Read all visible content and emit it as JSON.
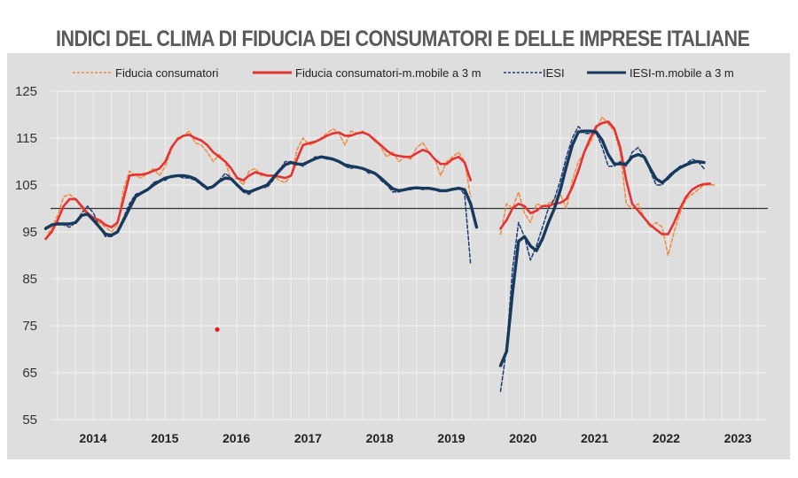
{
  "chart_data": {
    "type": "line",
    "title": "INDICI DEL CLIMA DI FIDUCIA DEI CONSUMATORI E DELLE IMPRESE ITALIANE",
    "xlabel": "",
    "ylabel": "",
    "ylim": [
      55,
      125
    ],
    "yticks": [
      55,
      65,
      75,
      85,
      95,
      105,
      115,
      125
    ],
    "xticks": [
      "2014",
      "2015",
      "2016",
      "2017",
      "2018",
      "2019",
      "2020",
      "2021",
      "2022",
      "2023"
    ],
    "reference_line": 100,
    "grid": true,
    "legend_position": "top",
    "x_start": "2013-11",
    "series": [
      {
        "name": "Fiducia consumatori",
        "color": "#f08a3c",
        "style": "dashed",
        "values": [
          93.5,
          96,
          98.5,
          102.5,
          103,
          102,
          100,
          98.5,
          97.5,
          97,
          96,
          95,
          96.5,
          104,
          108,
          107,
          106.5,
          107.5,
          108.5,
          107,
          109,
          112.5,
          115,
          115.5,
          116.5,
          114,
          113.5,
          112,
          110,
          111.5,
          110,
          106,
          106.5,
          105,
          108,
          108.5,
          107,
          107,
          107,
          106,
          105.5,
          107,
          112.5,
          115,
          113.5,
          114,
          115,
          116,
          117,
          116,
          113.5,
          116.5,
          116,
          116.5,
          115.5,
          115,
          113,
          111,
          112,
          110,
          111,
          110.5,
          113,
          114,
          112,
          110.5,
          107,
          110,
          111,
          112,
          110,
          102.5,
          null,
          null,
          null,
          null,
          94.5,
          101,
          100,
          103.5,
          99,
          97,
          101,
          100.5,
          101,
          102,
          103,
          100,
          106,
          110,
          112,
          114,
          117,
          119.5,
          118,
          116.5,
          112,
          101,
          100,
          101,
          98,
          96,
          97,
          96,
          90,
          95,
          99,
          102,
          103,
          104,
          105,
          105,
          105
        ],
        "gap": [
          76,
          79
        ]
      },
      {
        "name": "Fiducia consumatori-m.mobile a 3 m",
        "color": "#e23434",
        "style": "solid",
        "values": [
          93.5,
          95,
          97.5,
          100.5,
          102,
          102,
          100.5,
          99,
          98,
          97.5,
          96.5,
          96,
          97,
          102,
          107,
          107.2,
          107.2,
          107.5,
          108,
          108.5,
          110,
          113,
          114.7,
          115.5,
          115.7,
          115,
          114.5,
          113.5,
          112,
          111,
          110,
          108.5,
          106.5,
          106,
          107,
          107.7,
          107.4,
          107,
          107,
          106.8,
          106.5,
          107,
          110.5,
          113.5,
          113.9,
          114.2,
          114.8,
          115.5,
          116,
          116.2,
          115.5,
          115.5,
          116,
          116.2,
          115.7,
          114.5,
          113.5,
          112.3,
          111.5,
          111.2,
          111,
          111,
          111.8,
          112.5,
          112,
          110.5,
          109.5,
          109.5,
          110.5,
          111,
          109.8,
          106,
          null,
          null,
          null,
          null,
          95.7,
          97.5,
          100,
          101,
          100.5,
          99,
          99.5,
          100.5,
          100.5,
          101,
          101.2,
          102,
          104.5,
          108,
          112,
          115,
          117.5,
          118.2,
          118.5,
          117,
          113,
          106,
          101,
          99.5,
          98,
          96.5,
          95.5,
          94.5,
          94.5,
          97,
          100,
          102.5,
          104,
          104.8,
          105.2,
          105.3
        ]
      },
      {
        "name": "IESI",
        "color": "#1f3a78",
        "style": "dashed",
        "values": [
          96,
          96.5,
          97,
          96.5,
          96,
          97,
          99,
          100.5,
          99,
          96,
          94,
          94,
          95,
          98,
          101,
          103,
          103.5,
          104,
          105.5,
          106,
          106,
          107,
          107,
          106.5,
          106.5,
          106,
          105,
          104,
          104.5,
          106,
          107.5,
          106.5,
          105,
          103.5,
          103,
          104,
          104.5,
          104.5,
          106,
          108,
          110,
          110,
          109.5,
          109,
          110,
          111,
          111,
          110.5,
          110.5,
          110,
          109,
          108.5,
          109,
          108.5,
          107.5,
          107.5,
          106,
          105,
          103.5,
          103.5,
          104,
          104,
          104.5,
          104,
          104.5,
          104,
          103.5,
          104,
          104,
          104.5,
          103,
          88,
          null,
          null,
          null,
          null,
          61,
          70,
          87,
          97,
          94,
          89,
          92,
          96,
          100,
          102,
          106,
          111,
          115,
          117.5,
          116,
          116,
          116,
          113,
          109,
          109,
          110,
          109,
          112,
          113,
          111,
          108,
          105,
          105,
          107,
          108,
          109,
          109.5,
          110.5,
          110,
          108.5
        ],
        "gap": [
          71,
          75
        ]
      },
      {
        "name": "IESI-m.mobile a 3 m",
        "color": "#173a5c",
        "style": "solid",
        "values": [
          95.7,
          96.5,
          96.7,
          96.7,
          96.7,
          97,
          98.5,
          98.8,
          97.5,
          96,
          94.5,
          94.3,
          95,
          97.5,
          100,
          102.5,
          103.3,
          104,
          105,
          105.8,
          106.5,
          106.8,
          107,
          107,
          106.8,
          106.3,
          105.3,
          104.3,
          104.7,
          105.8,
          106.5,
          106.3,
          105,
          103.8,
          103.5,
          104,
          104.5,
          105,
          106.5,
          108,
          109.3,
          109.8,
          109.5,
          109.4,
          110,
          110.6,
          111,
          110.8,
          110.5,
          110,
          109.3,
          109,
          108.8,
          108.5,
          108,
          107.5,
          106.5,
          105.3,
          104.2,
          103.8,
          104,
          104.3,
          104.4,
          104.3,
          104.3,
          104.1,
          103.8,
          103.8,
          104.1,
          104.3,
          104,
          101,
          96,
          null,
          null,
          null,
          66.5,
          69.5,
          82,
          93,
          94,
          92,
          91,
          93.5,
          97,
          100,
          104,
          109,
          113.5,
          116.3,
          116.5,
          116.5,
          116.3,
          114.5,
          111.5,
          109.5,
          109.5,
          109.5,
          111,
          111.5,
          111,
          108.5,
          106.3,
          105.5,
          106.5,
          107.8,
          108.7,
          109.3,
          109.8,
          110,
          109.8
        ]
      }
    ]
  },
  "legend": {
    "items": [
      "Fiducia consumatori",
      "Fiducia consumatori-m.mobile a 3 m",
      "IESI",
      "IESI-m.mobile a 3 m"
    ]
  },
  "annotation_dot": {
    "value": 74.2,
    "color": "#e0202a"
  }
}
